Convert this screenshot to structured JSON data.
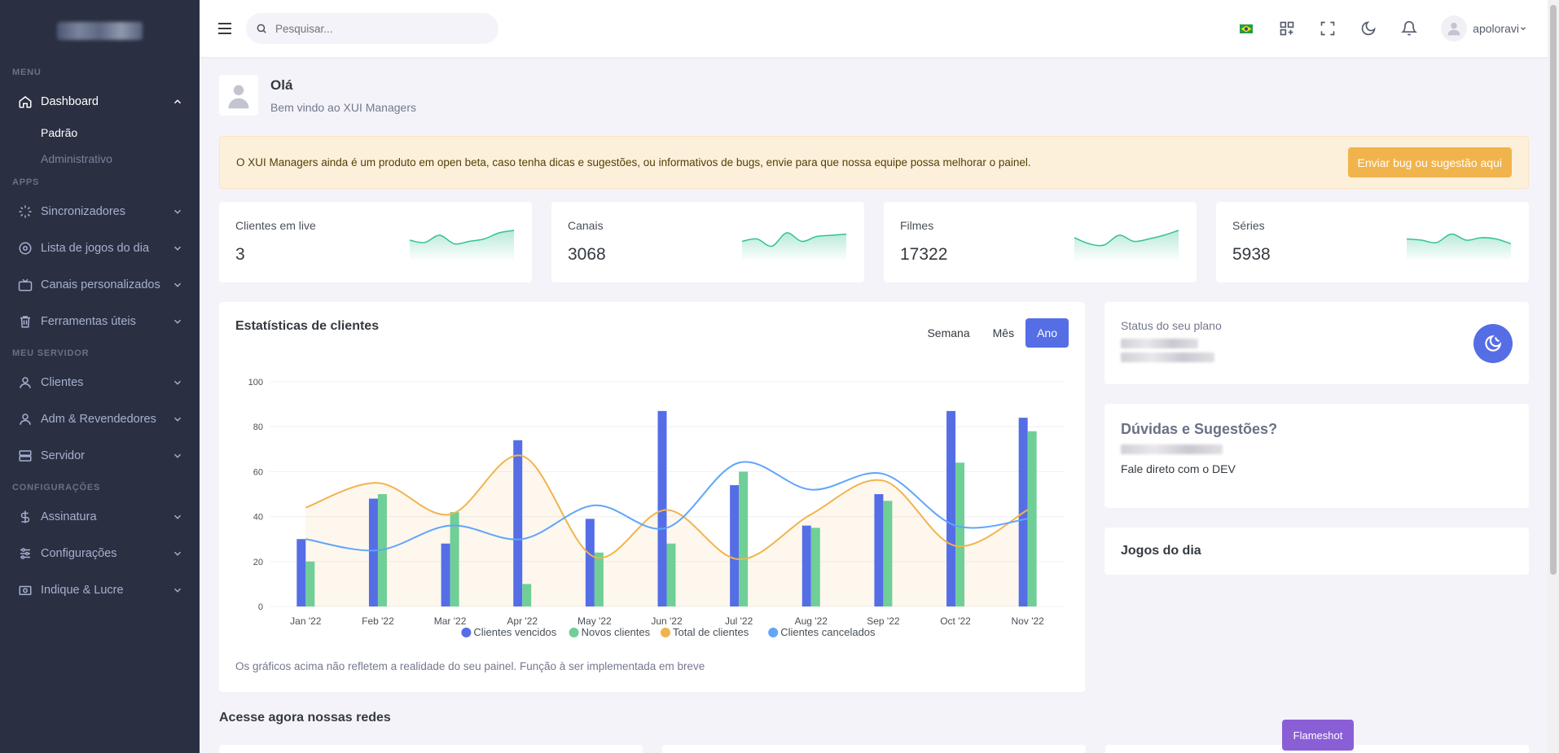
{
  "sidebar": {
    "sections": {
      "menu": "MENU",
      "apps": "APPS",
      "servidor": "MEU SERVIDOR",
      "config": "CONFIGURAÇÕES"
    },
    "dashboard": {
      "label": "Dashboard",
      "icon": "home-icon",
      "children": [
        "Padrão",
        "Administrativo"
      ]
    },
    "apps": [
      {
        "label": "Sincronizadores",
        "icon": "loader-icon"
      },
      {
        "label": "Lista de jogos do dia",
        "icon": "ball-icon"
      },
      {
        "label": "Canais personalizados",
        "icon": "tv-icon"
      },
      {
        "label": "Ferramentas úteis",
        "icon": "trash-icon"
      }
    ],
    "servidor": [
      {
        "label": "Clientes",
        "icon": "user-icon"
      },
      {
        "label": "Adm & Revendedores",
        "icon": "user-icon"
      },
      {
        "label": "Servidor",
        "icon": "server-icon"
      }
    ],
    "config": [
      {
        "label": "Assinatura",
        "icon": "dollar-icon"
      },
      {
        "label": "Configurações",
        "icon": "sliders-icon"
      },
      {
        "label": "Indique & Lucre",
        "icon": "money-icon"
      }
    ]
  },
  "header": {
    "search_placeholder": "Pesquisar...",
    "username": "apoloravi"
  },
  "welcome": {
    "hi": "Olá",
    "sub": "Bem vindo ao XUI Managers"
  },
  "alert": {
    "message": "O XUI Managers ainda é um produto em open beta, caso tenha dicas e sugestões, ou informativos de bugs, envie para que nossa equipe possa melhorar o painel.",
    "button": "Enviar bug ou sugestão aqui"
  },
  "stats": [
    {
      "title": "Clientes em live",
      "value": "3",
      "spark": [
        32,
        28,
        40,
        26,
        30,
        34,
        44,
        48
      ]
    },
    {
      "title": "Canais",
      "value": "3068",
      "spark": [
        30,
        34,
        22,
        44,
        30,
        38,
        40,
        42
      ]
    },
    {
      "title": "Filmes",
      "value": "17322",
      "spark": [
        36,
        26,
        24,
        40,
        30,
        34,
        40,
        48
      ]
    },
    {
      "title": "Séries",
      "value": "5938",
      "spark": [
        34,
        32,
        28,
        42,
        32,
        36,
        34,
        26
      ]
    }
  ],
  "chart": {
    "title": "Estatísticas de clientes",
    "ranges": [
      "Semana",
      "Mês",
      "Ano"
    ],
    "active_range": "Ano",
    "note": "Os gráficos acima não refletem a realidade do seu painel. Função à ser implementada em breve"
  },
  "chart_data": {
    "type": "bar",
    "categories": [
      "Jan '22",
      "Feb '22",
      "Mar '22",
      "Apr '22",
      "May '22",
      "Jun '22",
      "Jul '22",
      "Aug '22",
      "Sep '22",
      "Oct '22",
      "Nov '22"
    ],
    "ylim": [
      0,
      100
    ],
    "yticks": [
      0,
      20,
      40,
      60,
      80,
      100
    ],
    "grid": true,
    "legend": "bottom",
    "series": [
      {
        "name": "Clientes vencidos",
        "type": "bar",
        "color": "#556ee6",
        "values": [
          30,
          48,
          28,
          74,
          39,
          87,
          54,
          36,
          50,
          87,
          84
        ]
      },
      {
        "name": "Novos clientes",
        "type": "bar",
        "color": "#6fcf97",
        "values": [
          20,
          50,
          42,
          10,
          24,
          28,
          60,
          35,
          47,
          64,
          78
        ]
      },
      {
        "name": "Total de clientes",
        "type": "area",
        "color": "#f1b44c",
        "values": [
          44,
          55,
          41,
          67,
          22,
          43,
          21,
          41,
          56,
          27,
          43
        ]
      },
      {
        "name": "Clientes cancelados",
        "type": "line",
        "color": "#60a5fa",
        "values": [
          30,
          25,
          36,
          30,
          45,
          35,
          64,
          52,
          59,
          36,
          39
        ]
      }
    ]
  },
  "plan": {
    "title": "Status do seu plano"
  },
  "duvidas": {
    "title": "Dúvidas e Sugestões?",
    "sub": "Fale direto com o DEV"
  },
  "jogos": {
    "title": "Jogos do dia"
  },
  "redes": {
    "title": "Acesse agora nossas redes"
  },
  "flameshot": "Flameshot",
  "colors": {
    "primary": "#556ee6",
    "sidebar": "#2a3042",
    "warning": "#f1b44c",
    "spark": "#34c38f"
  }
}
